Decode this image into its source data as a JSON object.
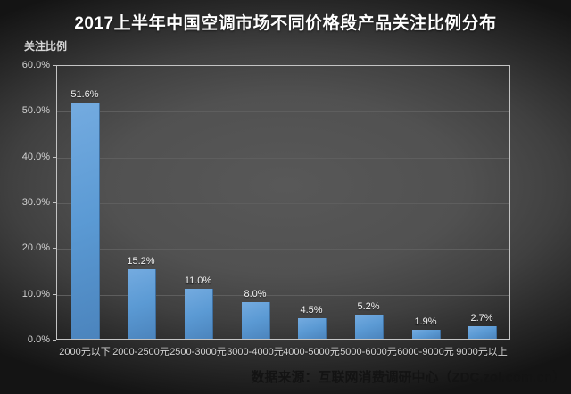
{
  "title": "2017上半年中国空调市场不同价格段产品关注比例分布",
  "source": "数据来源：互联网消费调研中心（ZDC.zol.com.cn）",
  "colors": {
    "bar": "#5B9BD5",
    "background_center": "#515151",
    "background_edge": "#141414",
    "title_text": "#ffffff",
    "axis_line": "#c4c4c4",
    "source_text": "#131313"
  },
  "chart_data": {
    "type": "bar",
    "title": "2017上半年中国空调市场不同价格段产品关注比例分布",
    "ylabel": "关注比例",
    "xlabel": "",
    "categories": [
      "2000元以下",
      "2000-2500元",
      "2500-3000元",
      "3000-4000元",
      "4000-5000元",
      "5000-6000元",
      "6000-9000元",
      "9000元以上"
    ],
    "values": [
      51.6,
      15.2,
      11.0,
      8.0,
      4.5,
      5.2,
      1.9,
      2.7
    ],
    "value_labels": [
      "51.6%",
      "15.2%",
      "11.0%",
      "8.0%",
      "4.5%",
      "5.2%",
      "1.9%",
      "2.7%"
    ],
    "yticks": [
      0,
      10,
      20,
      30,
      40,
      50,
      60
    ],
    "ytick_labels": [
      "0.0%",
      "10.0%",
      "20.0%",
      "30.0%",
      "40.0%",
      "50.0%",
      "60.0%"
    ],
    "ylim": [
      0,
      60
    ],
    "grid": true,
    "legend": false
  }
}
